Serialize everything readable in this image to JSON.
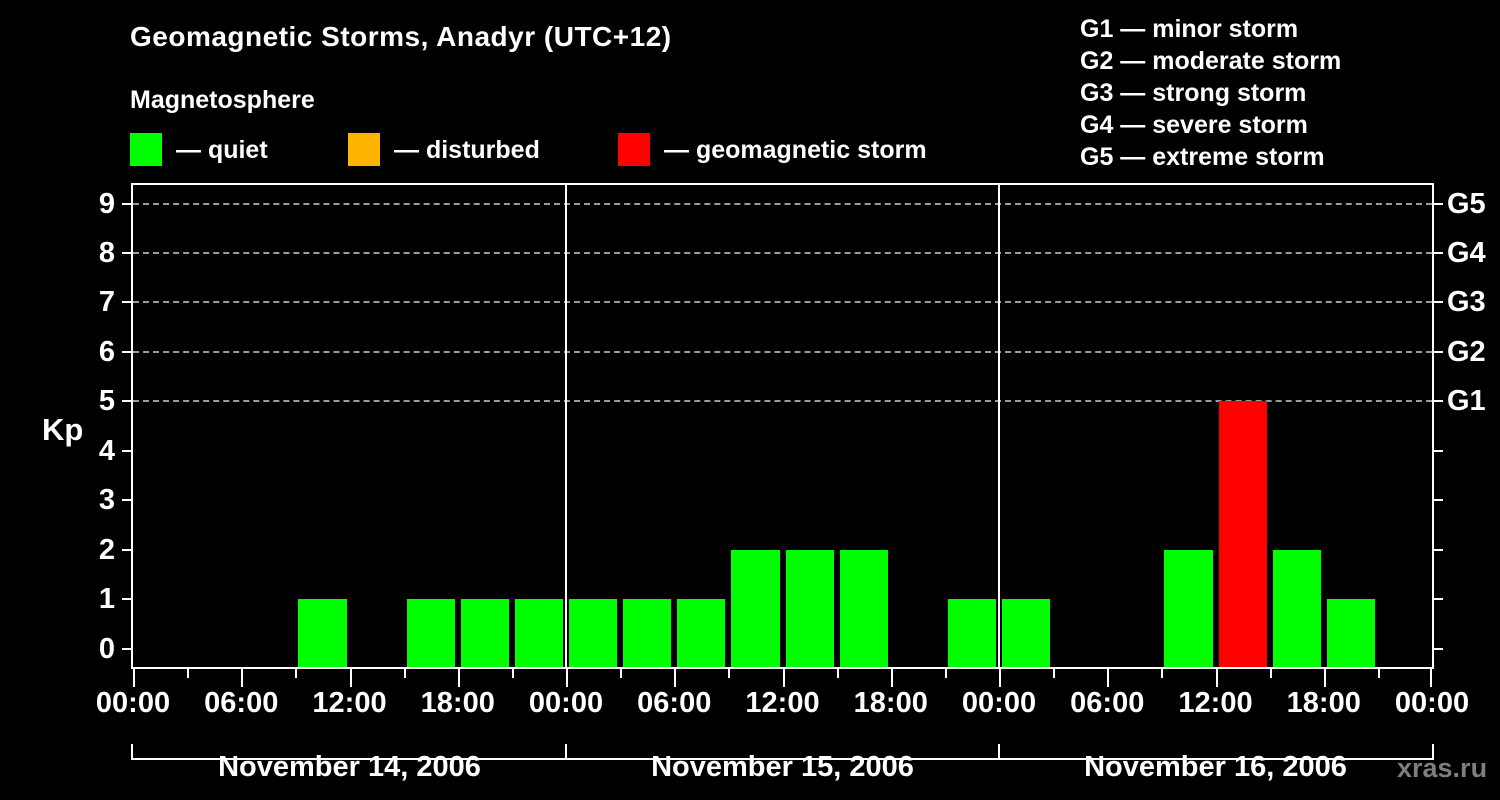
{
  "header": {
    "title": "Geomagnetic Storms, Anadyr (UTC+12)",
    "subtitle": "Magnetosphere"
  },
  "legend": {
    "items": [
      {
        "name": "quiet",
        "label": "— quiet",
        "color": "#00FF00",
        "x": 130
      },
      {
        "name": "disturbed",
        "label": "— disturbed",
        "color": "#FFB400",
        "x": 348
      },
      {
        "name": "storm",
        "label": "— geomagnetic storm",
        "color": "#FF0000",
        "x": 618
      }
    ]
  },
  "g_legend": {
    "items": [
      {
        "label": "G1 — minor storm"
      },
      {
        "label": "G2 — moderate storm"
      },
      {
        "label": "G3 — strong storm"
      },
      {
        "label": "G4 — severe storm"
      },
      {
        "label": "G5 — extreme storm"
      }
    ]
  },
  "axes": {
    "y_title": "Kp",
    "y_ticks": [
      0,
      1,
      2,
      3,
      4,
      5,
      6,
      7,
      8,
      9
    ],
    "right_ticks": [
      {
        "kp": 5,
        "label": "G1"
      },
      {
        "kp": 6,
        "label": "G2"
      },
      {
        "kp": 7,
        "label": "G3"
      },
      {
        "kp": 8,
        "label": "G4"
      },
      {
        "kp": 9,
        "label": "G5"
      }
    ],
    "x_major_labels": [
      "00:00",
      "06:00",
      "12:00",
      "18:00"
    ],
    "x_final_label": "00:00"
  },
  "chart_data": {
    "type": "bar",
    "title": "Geomagnetic Storms, Anadyr (UTC+12)",
    "subtitle": "Magnetosphere",
    "ylabel": "Kp",
    "ylim": [
      0,
      9
    ],
    "bin_hours": 3,
    "grid_kp_levels": [
      5,
      6,
      7,
      8,
      9
    ],
    "legend_position": "top",
    "days": [
      {
        "date": "November 14, 2006",
        "values": [
          0,
          0,
          0,
          1,
          0,
          1,
          1,
          1
        ]
      },
      {
        "date": "November 15, 2006",
        "values": [
          1,
          1,
          1,
          2,
          2,
          2,
          0,
          1
        ]
      },
      {
        "date": "November 16, 2006",
        "values": [
          1,
          0,
          0,
          2,
          5,
          2,
          1,
          0
        ]
      }
    ],
    "colors": {
      "quiet": "#00FF00",
      "disturbed": "#FFB400",
      "storm": "#FF0000"
    },
    "color_rules": {
      "storm_min_kp": 5,
      "disturbed_kp": 4
    }
  },
  "footer": {
    "watermark": "xras.ru"
  }
}
